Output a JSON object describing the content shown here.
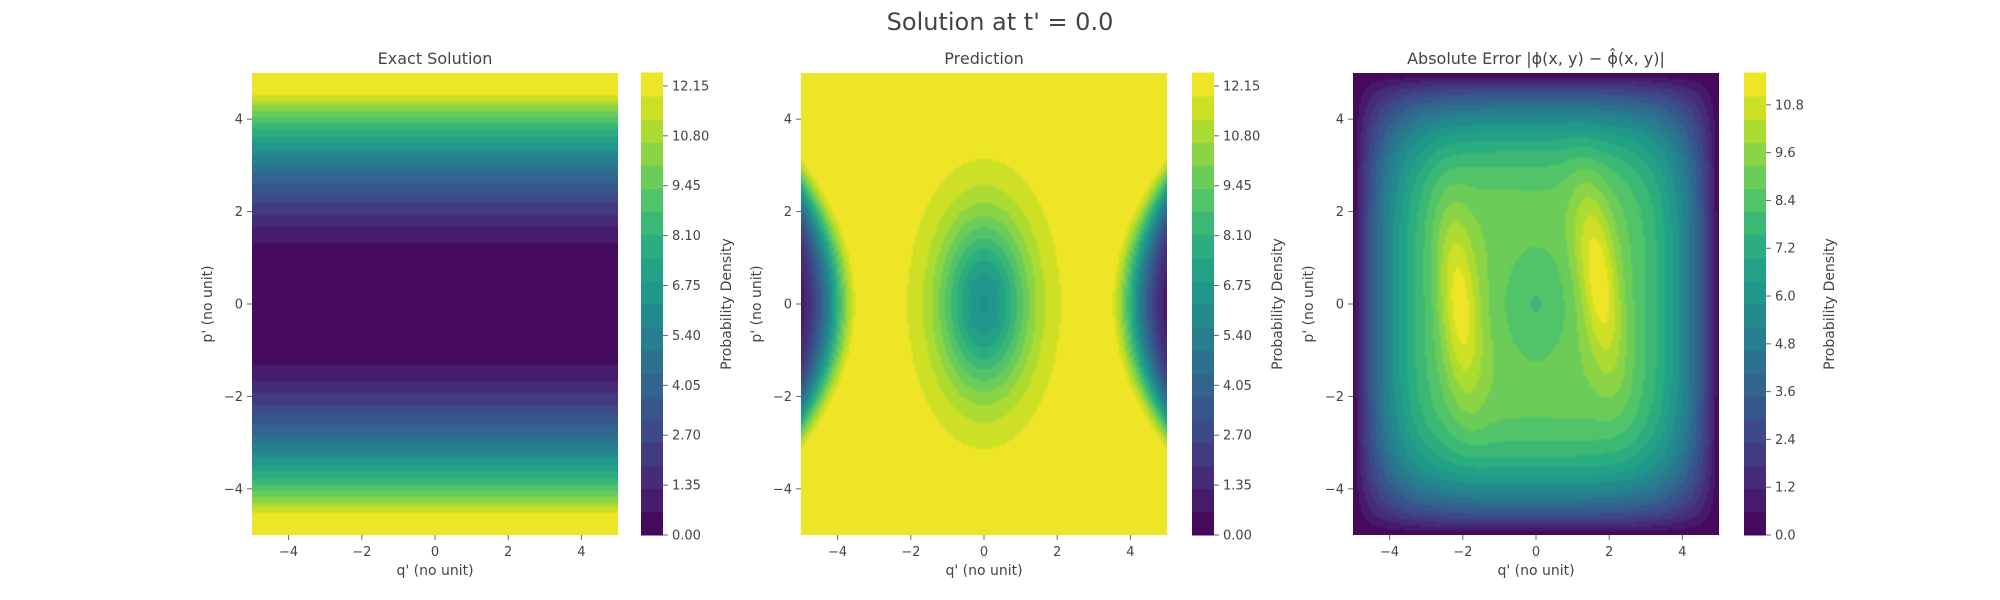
{
  "figure": {
    "suptitle": "Solution at t' = 0.0"
  },
  "chart_data": [
    {
      "type": "heatmap",
      "title": "Exact Solution",
      "xlabel": "q' (no unit)",
      "ylabel": "p' (no unit)",
      "colorbar_label": "Probability Density",
      "xlim": [
        -5,
        5
      ],
      "ylim": [
        -5,
        5
      ],
      "x_ticks": [
        -4,
        -2,
        0,
        2,
        4
      ],
      "y_ticks": [
        -4,
        -2,
        0,
        2,
        4
      ],
      "x_tick_labels": [
        "−4",
        "−2",
        "0",
        "2",
        "4"
      ],
      "y_tick_labels": [
        "−4",
        "−2",
        "0",
        "2",
        "4"
      ],
      "color_range": [
        0,
        12.5
      ],
      "colorbar_ticks": [
        0,
        1.35,
        2.7,
        4.05,
        5.4,
        6.75,
        8.1,
        9.45,
        10.8,
        12.15
      ],
      "colorbar_tick_labels": [
        "0.00",
        "1.35",
        "2.70",
        "4.05",
        "5.40",
        "6.75",
        "8.10",
        "9.45",
        "10.80",
        "12.15"
      ],
      "levels": 20,
      "colormap": "viridis",
      "field": "exact"
    },
    {
      "type": "heatmap",
      "title": "Prediction",
      "xlabel": "q' (no unit)",
      "ylabel": "p' (no unit)",
      "colorbar_label": "Probability Density",
      "xlim": [
        -5,
        5
      ],
      "ylim": [
        -5,
        5
      ],
      "x_ticks": [
        -4,
        -2,
        0,
        2,
        4
      ],
      "y_ticks": [
        -4,
        -2,
        0,
        2,
        4
      ],
      "x_tick_labels": [
        "−4",
        "−2",
        "0",
        "2",
        "4"
      ],
      "y_tick_labels": [
        "−4",
        "−2",
        "0",
        "2",
        "4"
      ],
      "color_range": [
        0,
        12.5
      ],
      "colorbar_ticks": [
        0,
        1.35,
        2.7,
        4.05,
        5.4,
        6.75,
        8.1,
        9.45,
        10.8,
        12.15
      ],
      "colorbar_tick_labels": [
        "0.00",
        "1.35",
        "2.70",
        "4.05",
        "5.40",
        "6.75",
        "8.10",
        "9.45",
        "10.80",
        "12.15"
      ],
      "levels": 20,
      "colormap": "viridis",
      "field": "prediction"
    },
    {
      "type": "heatmap",
      "title": "Absolute Error |ϕ(x, y) − ϕ̂(x, y)|",
      "xlabel": "q' (no unit)",
      "ylabel": "p' (no unit)",
      "colorbar_label": "Probability Density",
      "xlim": [
        -5,
        5
      ],
      "ylim": [
        -5,
        5
      ],
      "x_ticks": [
        -4,
        -2,
        0,
        2,
        4
      ],
      "y_ticks": [
        -4,
        -2,
        0,
        2,
        4
      ],
      "x_tick_labels": [
        "−4",
        "−2",
        "0",
        "2",
        "4"
      ],
      "y_tick_labels": [
        "−4",
        "−2",
        "0",
        "2",
        "4"
      ],
      "color_range": [
        0,
        11.6
      ],
      "colorbar_ticks": [
        0,
        1.2,
        2.4,
        3.6,
        4.8,
        6.0,
        7.2,
        8.4,
        9.6,
        10.8
      ],
      "colorbar_tick_labels": [
        "0.0",
        "1.2",
        "2.4",
        "3.6",
        "4.8",
        "6.0",
        "7.2",
        "8.4",
        "9.6",
        "10.8"
      ],
      "levels": 20,
      "colormap": "viridis",
      "field": "error"
    }
  ]
}
